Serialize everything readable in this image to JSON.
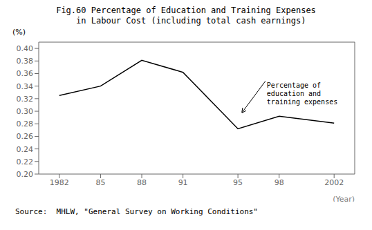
{
  "chart_data": {
    "type": "line",
    "title": "Fig.60 Percentage of Education and Training Expenses\n  in Labour Cost (including total cash earnings)",
    "source": "Source:  MHLW, \"General Survey on Working Conditions\"",
    "x_label": "(Year)",
    "y_label": "(%)",
    "x": [
      1982,
      1985,
      1988,
      1991,
      1995,
      1998,
      2002
    ],
    "values": [
      0.325,
      0.34,
      0.381,
      0.362,
      0.272,
      0.292,
      0.281
    ],
    "color": "#000000",
    "xlim": [
      1980.5,
      2003.5
    ],
    "ylim": [
      0.2,
      0.41
    ],
    "xticks": [
      1982,
      {
        "value": 1985,
        "label": "85"
      },
      {
        "value": 1988,
        "label": "88"
      },
      {
        "value": 1991,
        "label": "91"
      },
      {
        "value": 1995,
        "label": "95"
      },
      {
        "value": 1998,
        "label": "98"
      },
      2002
    ],
    "yticks": [
      {
        "value": 0.2,
        "label": "0.20"
      },
      0.22,
      0.24,
      0.26,
      0.28,
      {
        "value": 0.3,
        "label": "0.30"
      },
      0.32,
      0.34,
      0.36,
      0.38,
      {
        "value": 0.4,
        "label": "0.40"
      }
    ],
    "grid": false,
    "annotations": [
      {
        "text": "Percentage of\neducation and\ntraining expenses",
        "x": 1997.0,
        "y": 0.348,
        "arrow_x": 1995.3,
        "arrow_y": 0.298
      }
    ]
  }
}
